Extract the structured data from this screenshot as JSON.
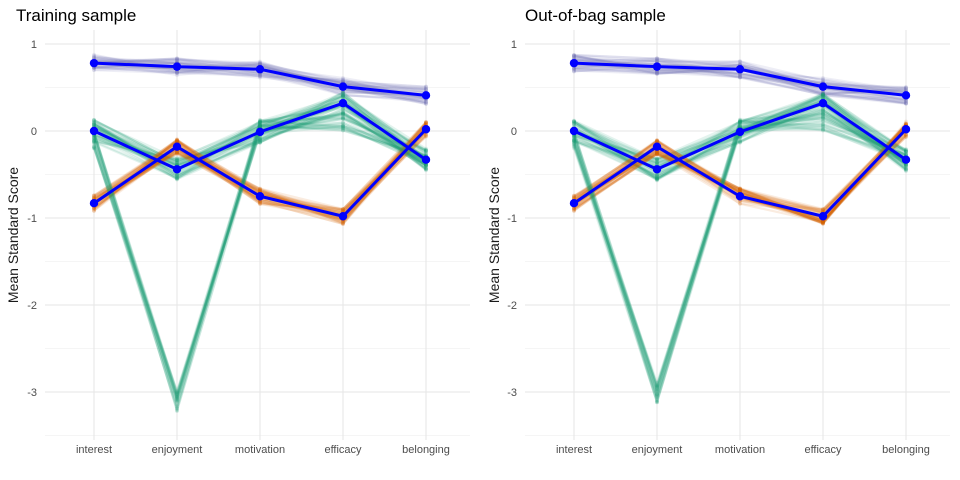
{
  "chart_data": [
    {
      "type": "line",
      "title": "Training sample",
      "ylabel": "Mean Standard Score",
      "xlabel": "",
      "categories": [
        "interest",
        "enjoyment",
        "motivation",
        "efficacy",
        "belonging"
      ],
      "ylim": [
        -3.5,
        1.1
      ],
      "yticks": [
        1,
        0,
        -1,
        -2,
        -3
      ],
      "grid": true,
      "legend": "none",
      "colors": {
        "purple": "#7570b3",
        "green": "#1b9e77",
        "orange": "#d95f02",
        "mean": "#0000ff"
      },
      "series": [
        {
          "color": "purple",
          "values": [
            0.78,
            0.74,
            0.71,
            0.51,
            0.41
          ]
        },
        {
          "color": "green",
          "values": [
            0.0,
            -0.44,
            -0.01,
            0.32,
            -0.33
          ]
        },
        {
          "color": "orange",
          "values": [
            -0.83,
            -0.18,
            -0.75,
            -0.98,
            0.02
          ]
        },
        {
          "color": "green",
          "values": [
            -0.1,
            -3.1,
            0.05,
            0.1,
            -0.3
          ]
        }
      ]
    },
    {
      "type": "line",
      "title": "Out-of-bag sample",
      "ylabel": "Mean Standard Score",
      "xlabel": "",
      "categories": [
        "interest",
        "enjoyment",
        "motivation",
        "efficacy",
        "belonging"
      ],
      "ylim": [
        -3.5,
        1.1
      ],
      "yticks": [
        1,
        0,
        -1,
        -2,
        -3
      ],
      "grid": true,
      "legend": "none",
      "colors": {
        "purple": "#7570b3",
        "green": "#1b9e77",
        "orange": "#d95f02",
        "mean": "#0000ff"
      },
      "series": [
        {
          "color": "purple",
          "values": [
            0.78,
            0.74,
            0.71,
            0.51,
            0.41
          ]
        },
        {
          "color": "green",
          "values": [
            0.0,
            -0.44,
            -0.01,
            0.32,
            -0.33
          ]
        },
        {
          "color": "orange",
          "values": [
            -0.83,
            -0.18,
            -0.75,
            -0.98,
            0.02
          ]
        },
        {
          "color": "green",
          "values": [
            -0.1,
            -3.0,
            0.05,
            0.1,
            -0.3
          ]
        }
      ]
    }
  ]
}
